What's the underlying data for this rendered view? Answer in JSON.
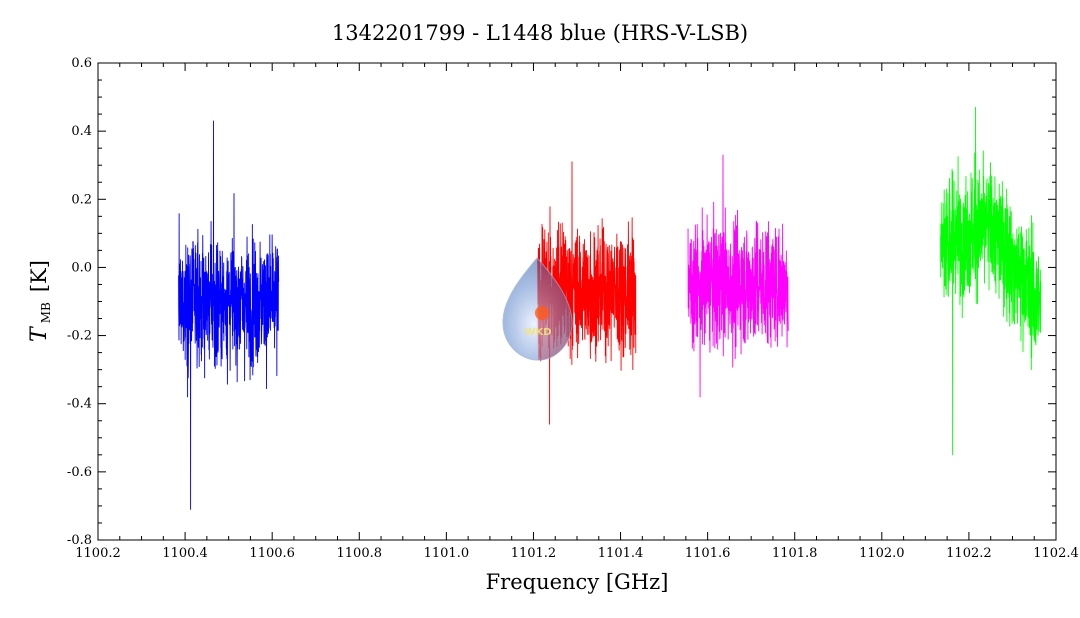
{
  "chart_data": {
    "type": "line",
    "title": "1342201799 - L1448 blue (HRS-V-LSB)",
    "xlabel": "Frequency [GHz]",
    "ylabel": {
      "symbol": "T",
      "subscript": "MB",
      "unit": "[K]"
    },
    "xlim": [
      1100.2,
      1102.4
    ],
    "ylim": [
      -0.8,
      0.6
    ],
    "x_ticks": [
      "1100.2",
      "1100.4",
      "1100.6",
      "1100.8",
      "1101.0",
      "1101.2",
      "1101.4",
      "1101.6",
      "1101.8",
      "1102.0",
      "1102.2",
      "1102.4"
    ],
    "y_ticks": [
      "-0.8",
      "-0.6",
      "-0.4",
      "-0.2",
      "0.0",
      "0.2",
      "0.4",
      "0.6"
    ],
    "grid": false,
    "series": [
      {
        "color": "#0000ff",
        "x_range": [
          1100.385,
          1100.615
        ],
        "mean": -0.1,
        "spread": 0.1,
        "min": -0.71,
        "max": 0.43
      },
      {
        "color": "#ff0000",
        "x_range": [
          1101.21,
          1101.435
        ],
        "mean": -0.07,
        "spread": 0.1,
        "min": -0.46,
        "max": 0.31
      },
      {
        "color": "#ff00ff",
        "x_range": [
          1101.555,
          1101.785
        ],
        "mean": -0.05,
        "spread": 0.1,
        "min": -0.38,
        "max": 0.33
      },
      {
        "color": "#00ff00",
        "x_range": [
          1102.135,
          1102.365
        ],
        "mean": 0.0,
        "spread": 0.1,
        "min": -0.55,
        "max": 0.47,
        "trend": [
          0.08,
          0.12,
          -0.12
        ]
      }
    ]
  },
  "watermark": {
    "text": "WKD"
  }
}
